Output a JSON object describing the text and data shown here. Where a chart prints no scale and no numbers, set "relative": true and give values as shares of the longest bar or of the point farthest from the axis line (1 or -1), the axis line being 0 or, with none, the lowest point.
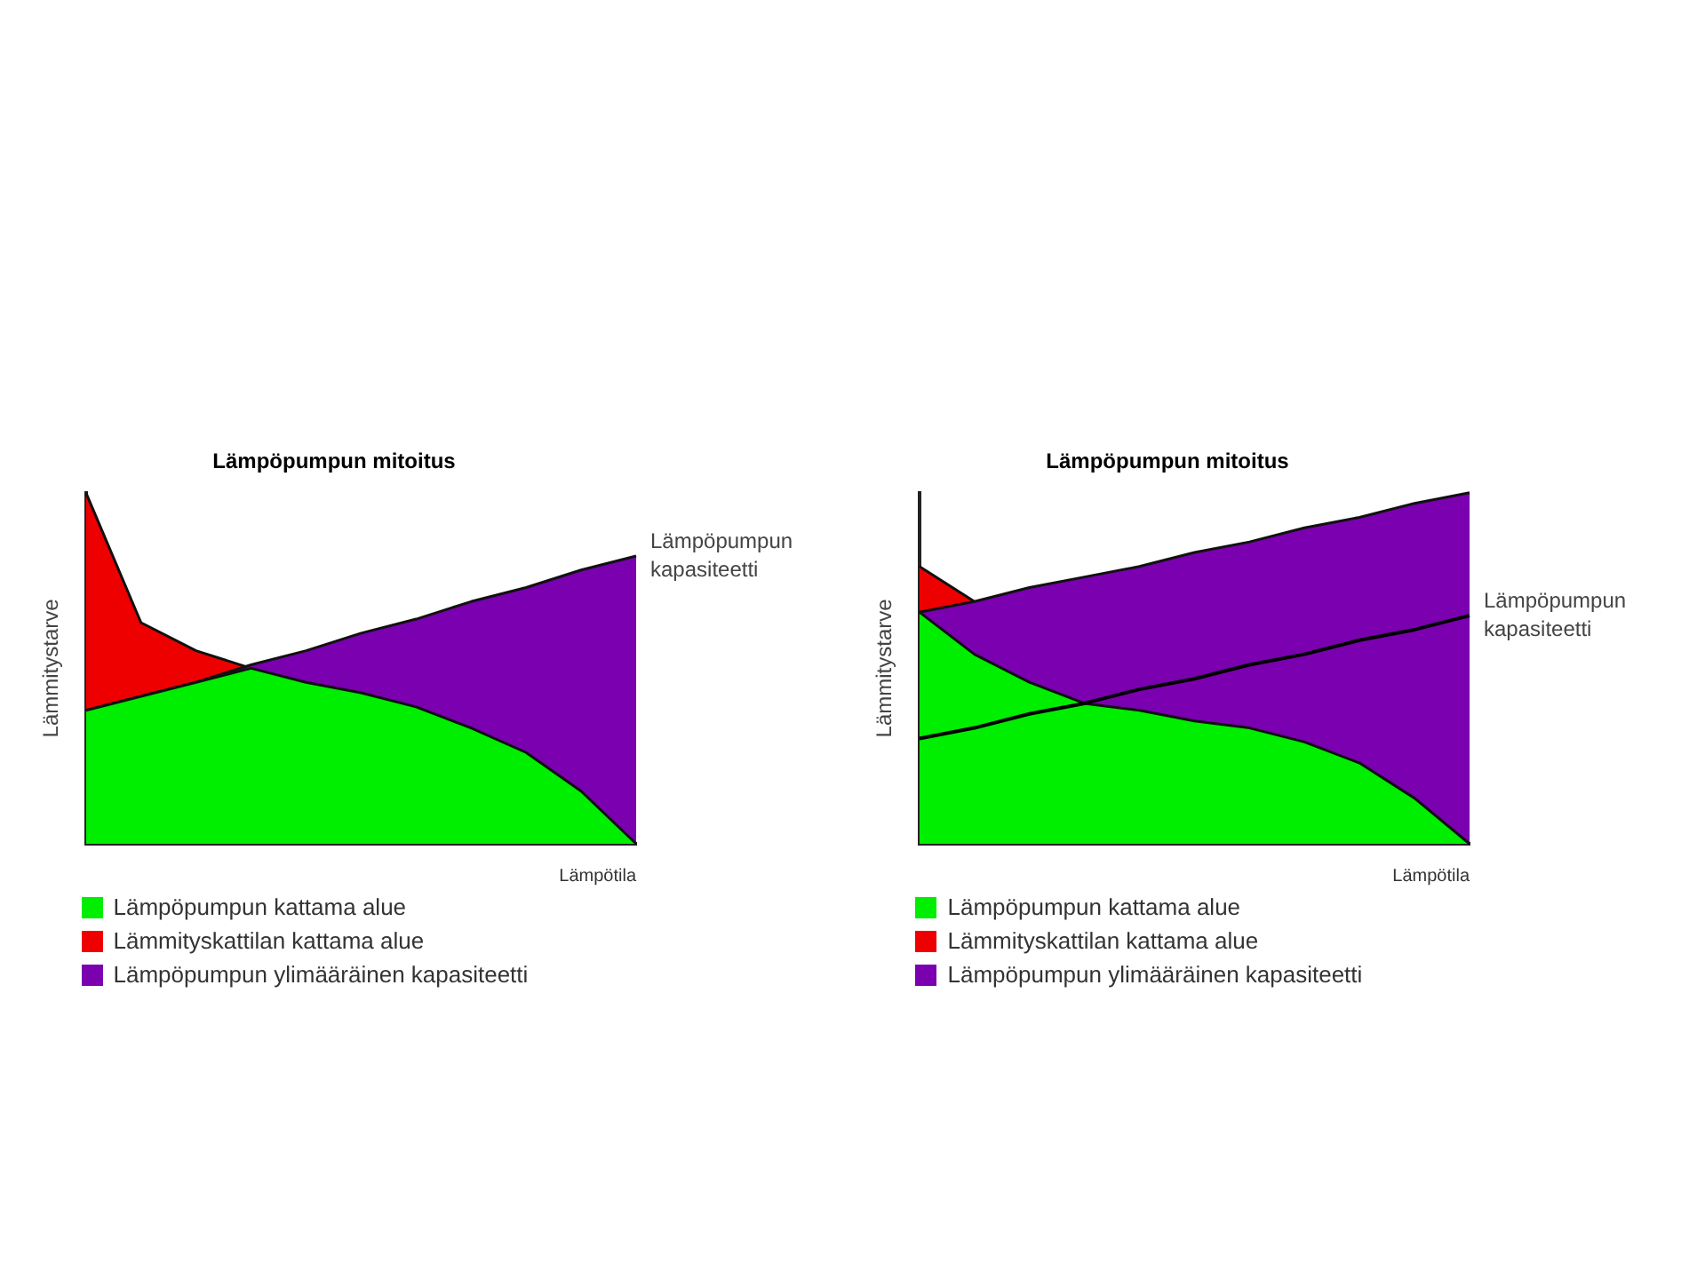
{
  "chart_data": [
    {
      "type": "area",
      "title": "Lämpöpumpun mitoitus",
      "xlabel": "Lämpötila",
      "ylabel": "Lämmitystarve",
      "relative": true,
      "legend": "bottom",
      "grid": false,
      "annotations": [
        "Lämpöpumpun kapasiteetti"
      ],
      "categories": [
        null,
        null,
        null,
        null,
        null,
        null,
        null,
        null,
        null,
        null,
        null
      ],
      "series": [
        {
          "name": "Lämpöpumpun kattama alue",
          "color": "#00ee00",
          "values": [
            0.38,
            0.42,
            0.46,
            0.5,
            0.46,
            0.43,
            0.39,
            0.33,
            0.26,
            0.15,
            0
          ]
        },
        {
          "name": "Lämmityskattilan kattama alue",
          "color": "#ee0000",
          "values": [
            1,
            0.63,
            0.55,
            0.5,
            null,
            null,
            null,
            null,
            null,
            null,
            null
          ]
        },
        {
          "name": "Lämpöpumpun ylimääräinen kapasiteetti",
          "color": "#7a00b0",
          "values": [
            0.38,
            0.42,
            0.46,
            0.51,
            0.55,
            0.6,
            0.64,
            0.69,
            0.73,
            0.78,
            0.82
          ]
        }
      ]
    },
    {
      "type": "area",
      "title": "Lämpöpumpun mitoitus",
      "xlabel": "Lämpötila",
      "ylabel": "Lämmitystarve",
      "relative": true,
      "legend": "bottom",
      "grid": false,
      "categories": [
        null,
        null,
        null,
        null,
        null,
        null,
        null,
        null,
        null,
        null,
        null
      ],
      "series": [
        {
          "name": "Lämpöpumpun kattama alue",
          "color": "#00ee00",
          "values": [
            0.66,
            0.54,
            0.46,
            0.4,
            0.38,
            0.35,
            0.33,
            0.29,
            0.23,
            0.13,
            0
          ]
        },
        {
          "name": "Lämmityskattilan kattama alue",
          "color": "#ee0000",
          "values": [
            0.79,
            0.69,
            null,
            null,
            null,
            null,
            null,
            null,
            null,
            null,
            null
          ]
        },
        {
          "name": "Lämpöpumpun ylimääräinen kapasiteetti",
          "color": "#7a00b0",
          "values": [
            0.66,
            0.69,
            0.73,
            0.76,
            0.79,
            0.83,
            0.86,
            0.9,
            0.93,
            0.97,
            1
          ]
        },
        {
          "name": "Lämpöpumpun kapasiteetti",
          "type": "line",
          "color": "#000000",
          "values": [
            0.3,
            0.33,
            0.37,
            0.4,
            0.44,
            0.47,
            0.51,
            0.54,
            0.58,
            0.61,
            0.65
          ]
        }
      ]
    }
  ]
}
